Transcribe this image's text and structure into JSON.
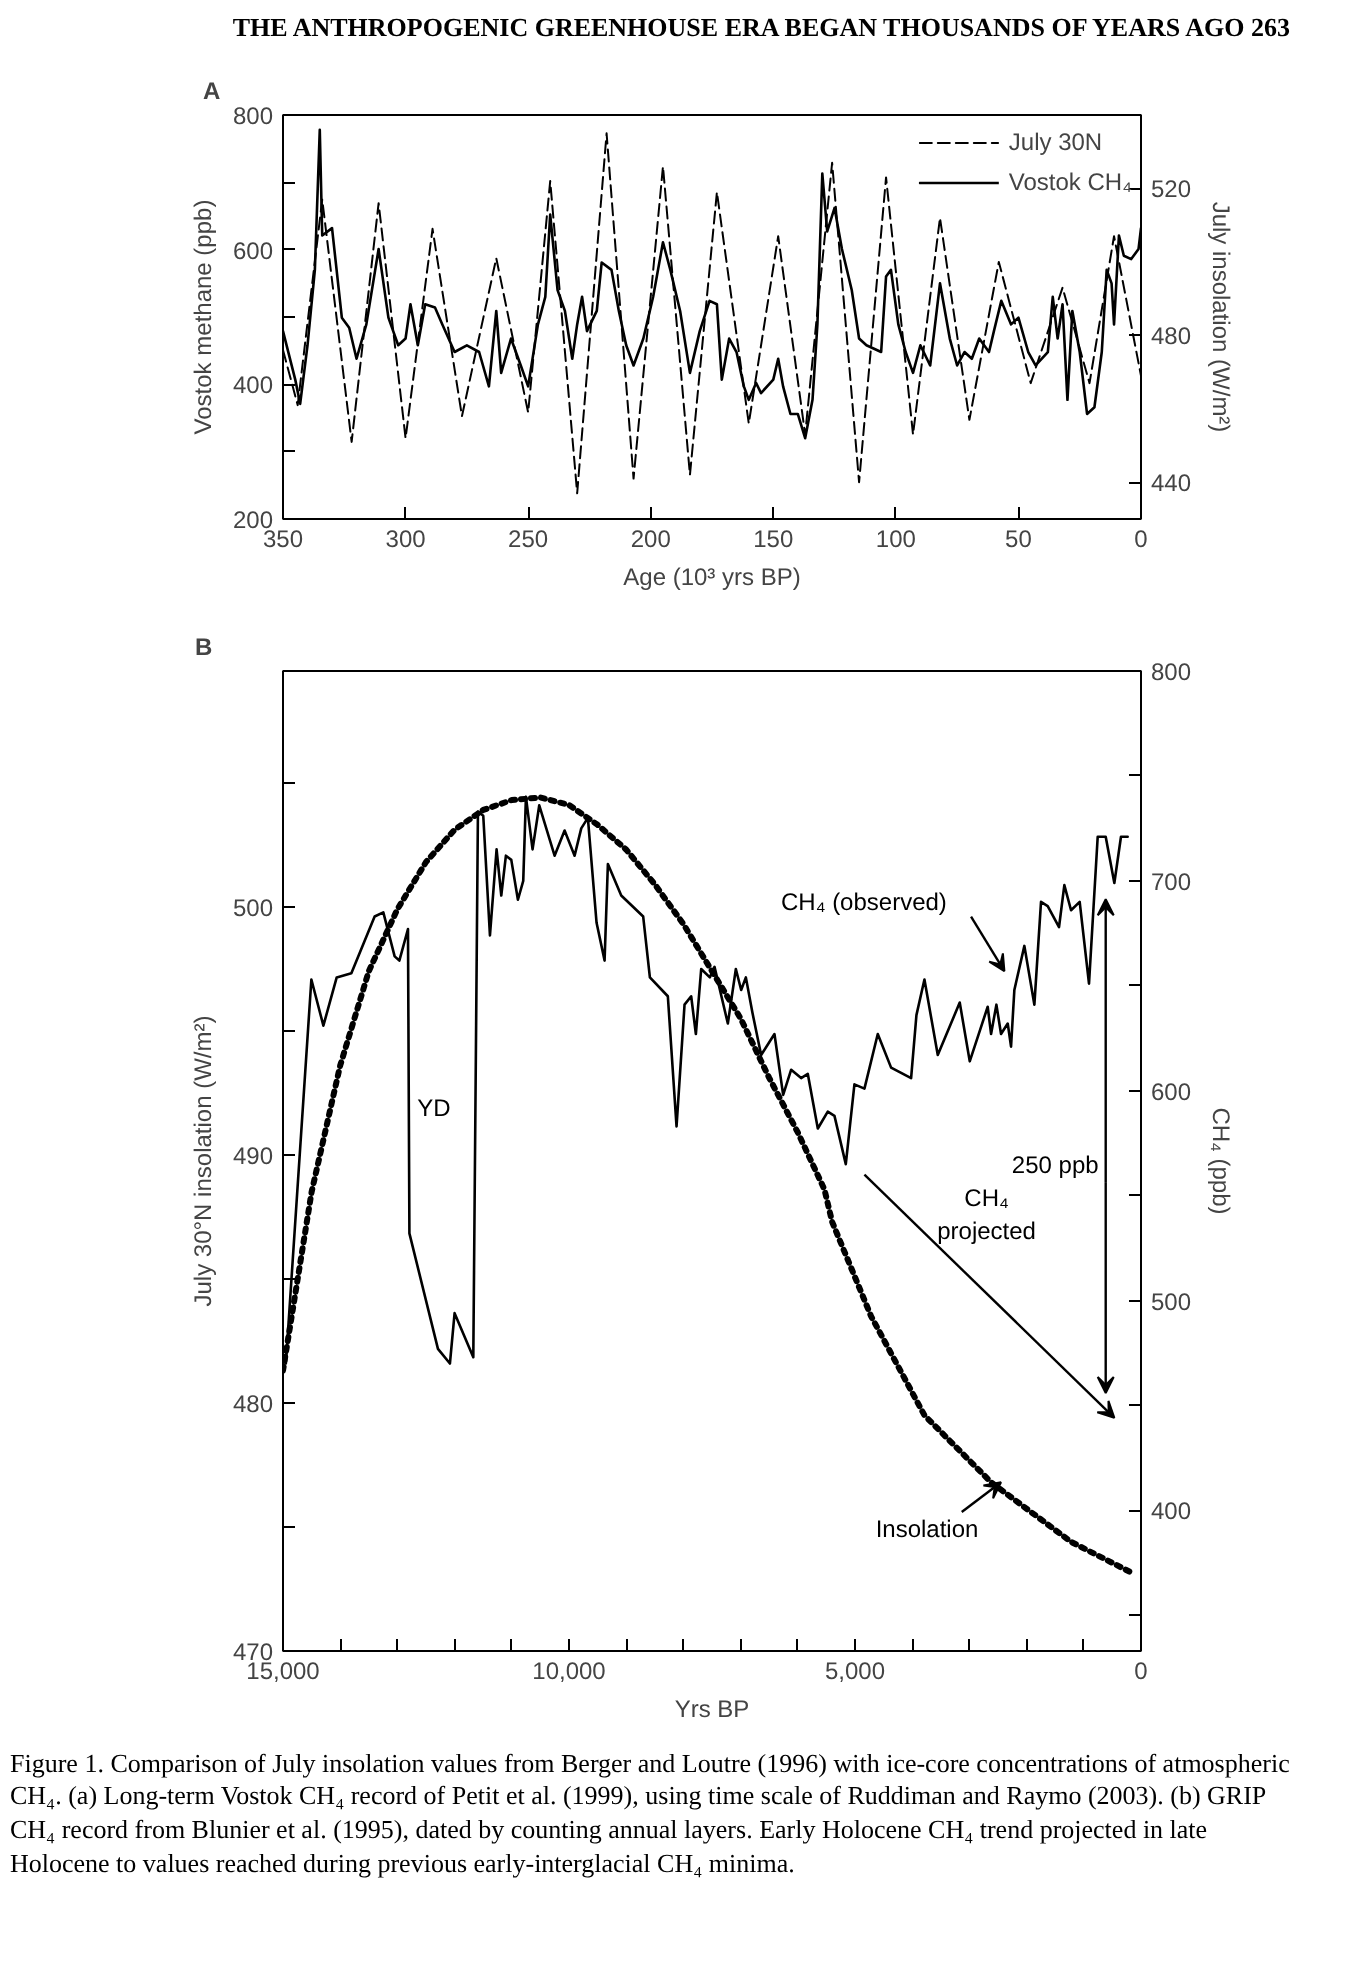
{
  "chart_data": [
    {
      "type": "line",
      "title": "A",
      "xlabel": "Age (10³ yrs BP)",
      "ylabel": "Vostok methane (ppb)",
      "y2label": "July insolation (W/m²)",
      "annotations": [
        "THE ANTHROPOGENIC GREENHOUSE ERA BEGAN THOUSANDS OF YEARS AGO    263"
      ],
      "xlim": [
        350,
        0
      ],
      "xticks": [
        350,
        300,
        250,
        200,
        150,
        100,
        50,
        0
      ],
      "ylim": [
        200,
        800
      ],
      "yticks": [
        200,
        {
          "value": 300,
          "label": null
        },
        400,
        {
          "value": 500,
          "label": null
        },
        600,
        {
          "value": 700,
          "label": null
        },
        800
      ],
      "y2lim": [
        430,
        540
      ],
      "y2ticks": [
        440,
        480,
        520
      ],
      "legend": "top right",
      "grid": false,
      "series": [
        {
          "name": "July 30N",
          "color": "#000000",
          "axis": "y2",
          "line_style": "dashed",
          "x": [
            350,
            344,
            334,
            322,
            311,
            300,
            289,
            277,
            263,
            250,
            241,
            230,
            218,
            207,
            195,
            184,
            173,
            160,
            148,
            137,
            126,
            115,
            104,
            93,
            82,
            70,
            58,
            45,
            32,
            21,
            11,
            0
          ],
          "values": [
            476,
            461,
            517,
            451,
            516,
            452,
            509,
            458,
            501,
            459,
            522,
            437,
            535,
            441,
            526,
            442,
            519,
            456,
            507,
            453,
            527,
            440,
            523,
            453,
            512,
            457,
            500,
            467,
            493,
            467,
            507,
            469
          ]
        },
        {
          "name": "Vostok CH₄",
          "color": "#000000",
          "line_style": "solid",
          "x": [
            350,
            345,
            343,
            340,
            337,
            335,
            334,
            330,
            326,
            323,
            320,
            316,
            311,
            307,
            303,
            300,
            298,
            295,
            292,
            288,
            285,
            280,
            275,
            270,
            266,
            263,
            261,
            257,
            253,
            250,
            246,
            243,
            241,
            238,
            235,
            232,
            230,
            228,
            226,
            222,
            220,
            216,
            213,
            210,
            207,
            203,
            199,
            195,
            192,
            188,
            184,
            180,
            176,
            173,
            171,
            168,
            165,
            162,
            160,
            157,
            155,
            150,
            148,
            146,
            143,
            140,
            137,
            134,
            132,
            130,
            128,
            125,
            122,
            118,
            115,
            112,
            106,
            104,
            102,
            99,
            96,
            93,
            90,
            86,
            82,
            78,
            75,
            72,
            69,
            66,
            62,
            60,
            57,
            53,
            50,
            46,
            43,
            38,
            36,
            34,
            32,
            30,
            28,
            25,
            22,
            19,
            16,
            14,
            12,
            11,
            9,
            7,
            4,
            1,
            0
          ],
          "values": [
            479,
            407,
            371,
            458,
            570,
            778,
            621,
            632,
            499,
            484,
            438,
            489,
            601,
            499,
            458,
            468,
            519,
            458,
            519,
            514,
            489,
            448,
            458,
            448,
            397,
            509,
            417,
            468,
            428,
            397,
            489,
            530,
            652,
            540,
            509,
            438,
            489,
            530,
            479,
            509,
            581,
            570,
            509,
            458,
            428,
            468,
            530,
            611,
            570,
            509,
            417,
            479,
            524,
            519,
            407,
            468,
            448,
            397,
            377,
            402,
            387,
            407,
            438,
            397,
            356,
            356,
            320,
            377,
            489,
            713,
            627,
            662,
            601,
            540,
            468,
            458,
            448,
            560,
            570,
            489,
            448,
            417,
            458,
            428,
            550,
            468,
            428,
            448,
            438,
            468,
            448,
            479,
            524,
            489,
            499,
            448,
            428,
            448,
            530,
            468,
            519,
            377,
            509,
            448,
            356,
            366,
            448,
            570,
            550,
            489,
            621,
            591,
            586,
            601,
            632
          ]
        }
      ]
    },
    {
      "type": "line",
      "title": "B",
      "xlabel": "Yrs BP",
      "ylabel": "July 30°N insolation (W/m²)",
      "y2label": "CH₄ (ppb)",
      "xlim": [
        15000,
        0
      ],
      "xticks": [
        {
          "value": 15000,
          "label": "15,000"
        },
        {
          "value": 14000,
          "label": null
        },
        {
          "value": 13000,
          "label": null
        },
        {
          "value": 12000,
          "label": null
        },
        {
          "value": 11000,
          "label": null
        },
        {
          "value": 10000,
          "label": "10,000"
        },
        {
          "value": 9000,
          "label": null
        },
        {
          "value": 8000,
          "label": null
        },
        {
          "value": 7000,
          "label": null
        },
        {
          "value": 6000,
          "label": null
        },
        {
          "value": 5000,
          "label": "5,000"
        },
        {
          "value": 4000,
          "label": null
        },
        {
          "value": 3000,
          "label": null
        },
        {
          "value": 2000,
          "label": null
        },
        {
          "value": 1000,
          "label": null
        },
        0
      ],
      "ylim": [
        470,
        509.5
      ],
      "yticks": [
        470,
        {
          "value": 475,
          "label": null
        },
        480,
        {
          "value": 485,
          "label": null
        },
        490,
        {
          "value": 495,
          "label": null
        },
        500,
        {
          "value": 505,
          "label": null
        }
      ],
      "y2lim": [
        333,
        800
      ],
      "y2ticks": [
        {
          "value": 350,
          "label": null
        },
        400,
        {
          "value": 450,
          "label": null
        },
        500,
        {
          "value": 550,
          "label": null
        },
        600,
        {
          "value": 650,
          "label": null
        },
        700,
        {
          "value": 750,
          "label": null
        },
        800
      ],
      "grid": false,
      "legend": false,
      "annotations": [
        "YD",
        "CH₄ (observed)",
        {
          "text": "Insolation",
          "x": 2447,
          "y": 476.8
        },
        "CH₄\nprojected",
        "250 ppb",
        "Figure 1. Comparison of July insolation values from Berger and Loutre (1996) with ice-core concentrations of atmospheric CH₄. (a) Long-term Vostok CH₄ record of Petit et al. (1999), using time scale of Ruddiman and Raymo (2003). (b) GRIP CH₄ record from Blunier et al. (1995), dated by counting annual layers. Early Holocene CH₄ trend projected in late Holocene to values reached during previous early-interglacial CH₄ minima."
      ],
      "series": [
        {
          "color": "#000000",
          "line_style": "dotted",
          "x": [
            15000,
            14500,
            14000,
            13500,
            13000,
            12500,
            12000,
            11500,
            11000,
            10500,
            10000,
            9500,
            9000,
            8500,
            8000,
            7500,
            7000,
            6500,
            6000,
            5534,
            5400,
            4720,
            3786,
            2621,
            1223,
            117
          ],
          "values": [
            481.3,
            488.5,
            493.6,
            497.4,
            499.9,
            501.8,
            503.1,
            503.9,
            504.3,
            504.4,
            504.1,
            503.3,
            502.3,
            500.9,
            499.3,
            497.4,
            495.5,
            493.1,
            490.9,
            488.6,
            487.3,
            483.5,
            479.5,
            476.8,
            474.4,
            473.1
          ]
        },
        {
          "color": "#000000",
          "axis": "y2",
          "line_style": "solid",
          "x": [
            14950,
            14504,
            14294,
            14061,
            13805,
            13398,
            13246,
            13048,
            12966,
            12815,
            12790,
            12291,
            12082,
            12000,
            11673,
            11592,
            11499,
            11382,
            11266,
            11184,
            11103,
            11009,
            10893,
            10800,
            10753,
            10637,
            10520,
            10252,
            10077,
            9902,
            9786,
            9670,
            9518,
            9378,
            9320,
            9087,
            8703,
            8586,
            8272,
            8120,
            7980,
            7864,
            7782,
            7689,
            7538,
            7456,
            7223,
            7083,
            6990,
            6908,
            6792,
            6641,
            6408,
            6256,
            6116,
            5942,
            5825,
            5650,
            5476,
            5359,
            5161,
            5010,
            4835,
            4602,
            4369,
            4019,
            3926,
            3786,
            3553,
            3169,
            2994,
            2680,
            2621,
            2528,
            2447,
            2330,
            2272,
            2214,
            2039,
            1864,
            1748,
            1631,
            1433,
            1340,
            1223,
            1072,
            909,
            757,
            617,
            466,
            350,
            233
          ],
          "values": [
            470,
            653,
            631,
            654,
            656,
            683,
            685,
            664,
            662,
            677,
            532,
            477,
            470,
            494,
            473,
            733,
            731,
            674,
            715,
            693,
            712,
            710,
            691,
            700,
            740,
            715,
            736,
            712,
            724,
            712,
            725,
            730,
            680,
            662,
            708,
            693,
            683,
            654,
            645,
            583,
            641,
            645,
            627,
            658,
            654,
            659,
            632,
            658,
            648,
            654,
            637,
            617,
            627,
            598,
            610,
            606,
            608,
            582,
            590,
            588,
            565,
            603,
            601,
            627,
            611,
            606,
            636,
            653,
            617,
            642,
            614,
            640,
            627,
            641,
            627,
            632,
            621,
            648,
            669,
            641,
            690,
            688,
            678,
            698,
            686,
            690,
            651,
            721,
            721,
            699,
            721,
            721
          ]
        }
      ]
    }
  ]
}
